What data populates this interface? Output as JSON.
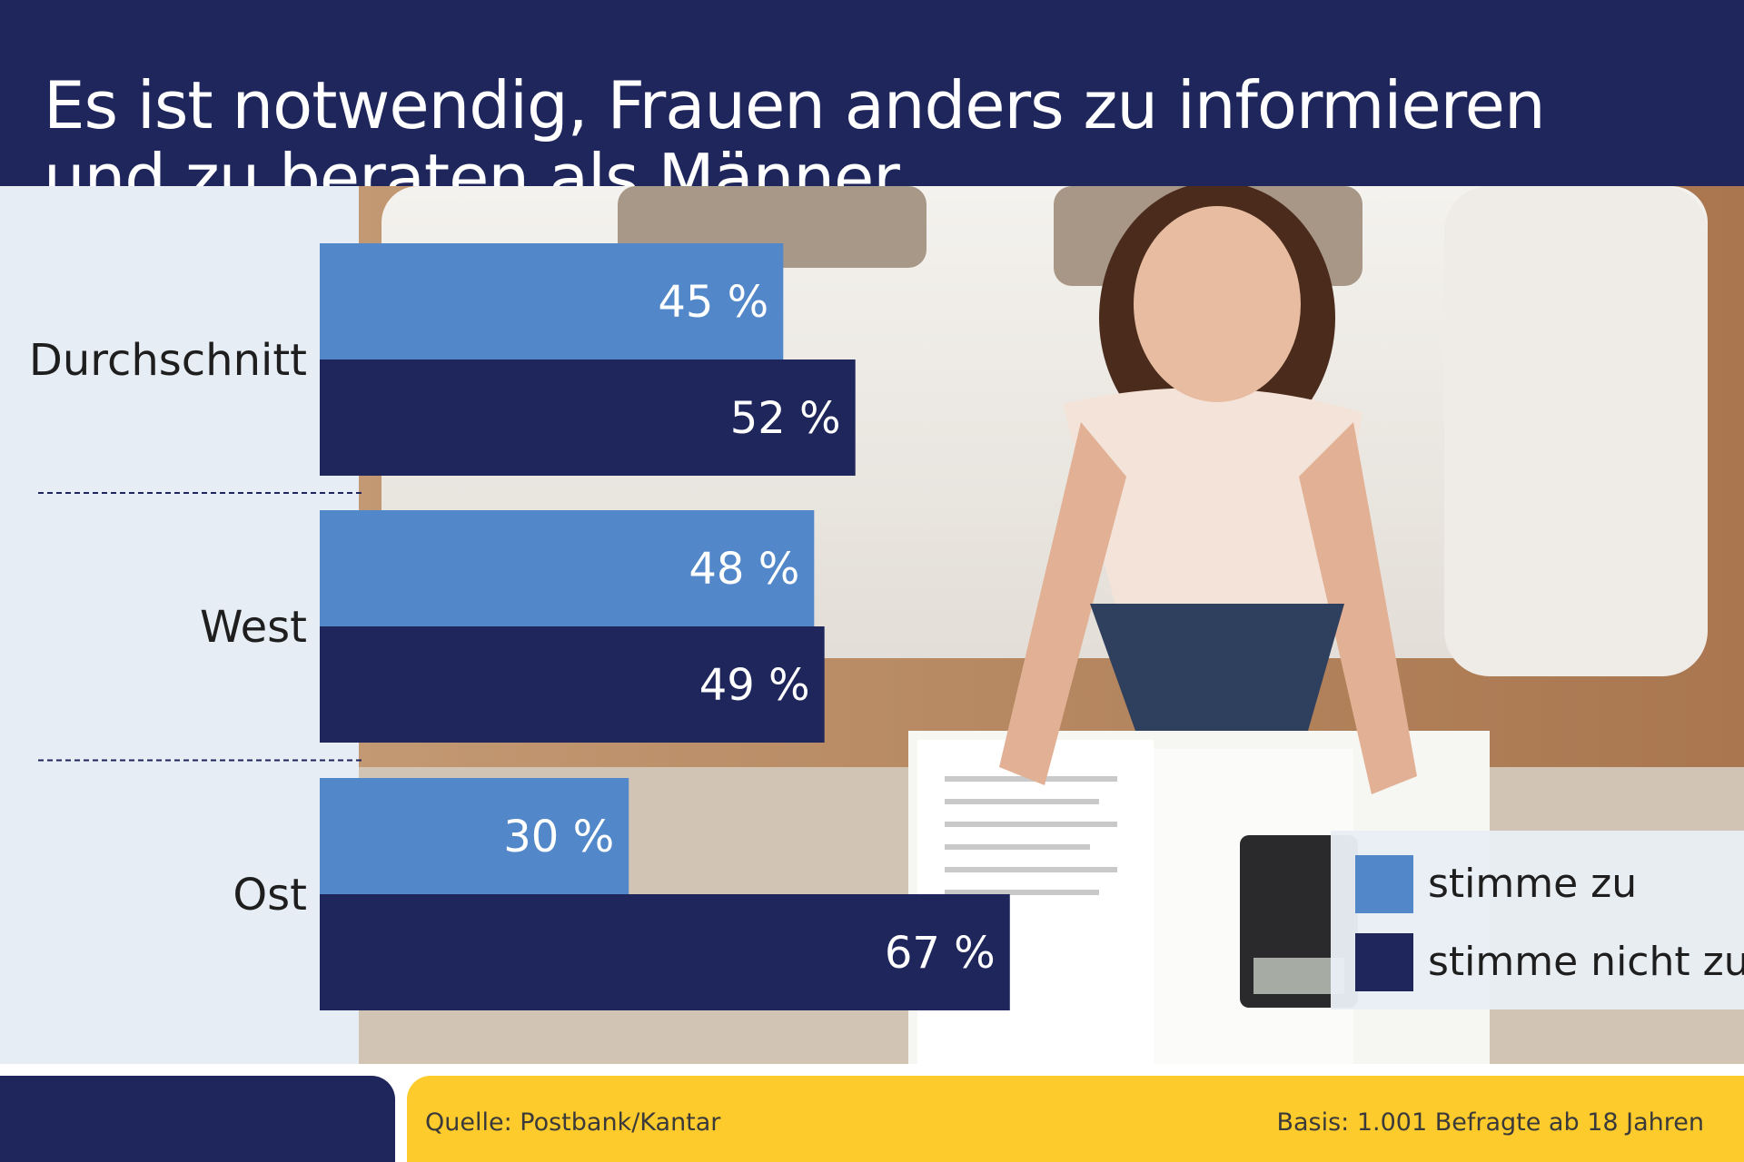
{
  "header": {
    "title_line1": "Es ist notwendig, Frauen anders zu informieren",
    "title_line2": "und zu beraten als Männer"
  },
  "chart_data": {
    "type": "bar",
    "orientation": "horizontal",
    "title": "Es ist notwendig, Frauen anders zu informieren und zu beraten als Männer",
    "categories": [
      "Durchschnitt",
      "West",
      "Ost"
    ],
    "series": [
      {
        "name": "stimme zu",
        "values": [
          45,
          48,
          30
        ],
        "labels": [
          "45 %",
          "48 %",
          "30 %"
        ],
        "color": "#5287c9"
      },
      {
        "name": "stimme nicht zu",
        "values": [
          52,
          49,
          67
        ],
        "labels": [
          "52 %",
          "49 %",
          "67 %"
        ],
        "color": "#1f265c"
      }
    ],
    "unit": "%",
    "xlim": [
      0,
      100
    ],
    "legend": {
      "placement": "bottom-right"
    },
    "grid": false
  },
  "legend": {
    "agree_label": "stimme zu",
    "disagree_label": "stimme nicht zu"
  },
  "footer": {
    "source": "Quelle: Postbank/Kantar",
    "base": "Basis: 1.001 Befragte ab 18 Jahren"
  },
  "colors": {
    "navy": "#1f265c",
    "light_blue": "#5287c9",
    "yellow": "#fecb2c",
    "label_panel": "#e6edf4"
  }
}
